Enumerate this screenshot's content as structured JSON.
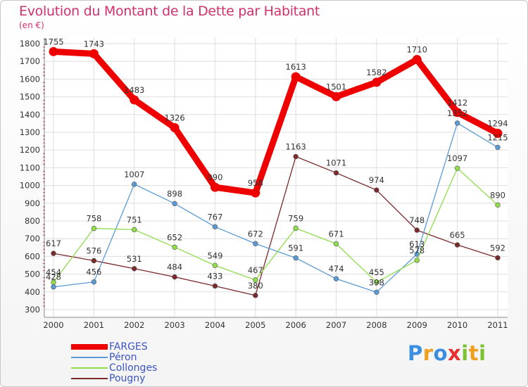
{
  "title": "Evolution du Montant de la Dette par Habitant",
  "subtitle": "(en €)",
  "brand": {
    "text": "Proxiti",
    "letters": [
      {
        "ch": "P",
        "color": "#3b8ee0"
      },
      {
        "ch": "r",
        "color": "#f0a020"
      },
      {
        "ch": "o",
        "color": "#3b8ee0"
      },
      {
        "ch": "x",
        "color": "#e83030"
      },
      {
        "ch": "i",
        "color": "#7cc232"
      },
      {
        "ch": "t",
        "color": "#f0a020"
      },
      {
        "ch": "i",
        "color": "#7cc232"
      }
    ]
  },
  "chart_data": {
    "type": "line",
    "title": "Evolution du Montant de la Dette par Habitant",
    "ylabel": "(en €)",
    "ylim": [
      300,
      1800
    ],
    "yticks": [
      300,
      400,
      500,
      600,
      700,
      800,
      900,
      1000,
      1100,
      1200,
      1300,
      1400,
      1500,
      1600,
      1700,
      1800
    ],
    "x": [
      "2000",
      "2001",
      "2002",
      "2003",
      "2004",
      "2005",
      "2006",
      "2007",
      "2008",
      "2009",
      "2010",
      "2011"
    ],
    "grid": true,
    "legend_position": "bottom-left",
    "series": [
      {
        "name": "FARGES",
        "color": "#ee0000",
        "values": [
          1755,
          1743,
          1483,
          1326,
          990,
          958,
          1613,
          1501,
          1582,
          1710,
          1412,
          1294
        ]
      },
      {
        "name": "Péron",
        "color": "#5b9bd5",
        "values": [
          428,
          456,
          1007,
          898,
          767,
          672,
          591,
          474,
          398,
          613,
          1352,
          1215
        ]
      },
      {
        "name": "Collonges",
        "color": "#90dd4c",
        "values": [
          454,
          758,
          751,
          652,
          549,
          467,
          759,
          671,
          455,
          578,
          1097,
          890
        ]
      },
      {
        "name": "Pougny",
        "color": "#7a2a2a",
        "values": [
          617,
          576,
          531,
          484,
          433,
          380,
          1163,
          1071,
          974,
          748,
          665,
          592
        ]
      }
    ]
  }
}
